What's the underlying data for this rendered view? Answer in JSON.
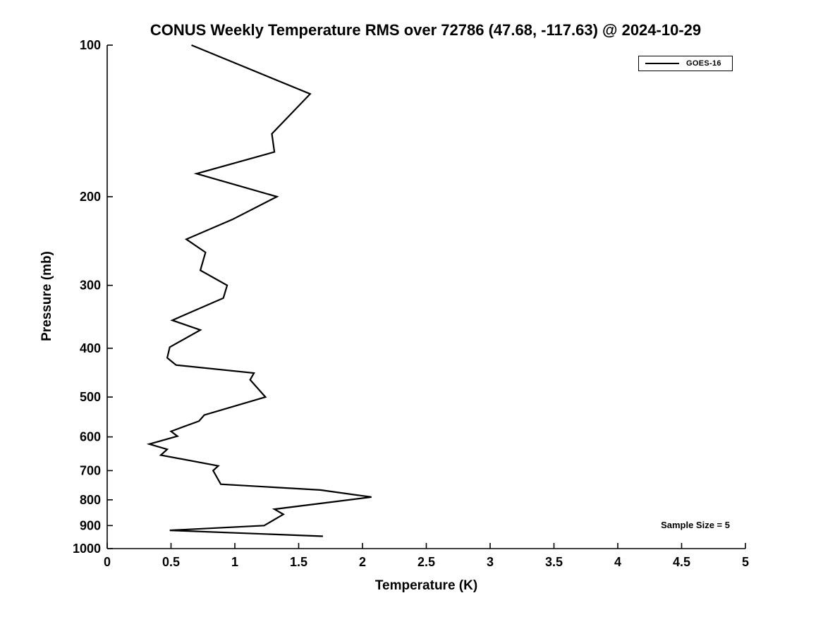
{
  "chart_data": {
    "type": "line",
    "title": "CONUS Weekly Temperature RMS over 72786 (47.68, -117.63) @ 2024-10-29",
    "xlabel": "Temperature (K)",
    "ylabel": "Pressure (mb)",
    "xlim": [
      0,
      5
    ],
    "ylim": [
      100,
      1000
    ],
    "y_scale": "log10",
    "y_inverted": true,
    "grid": false,
    "x_ticks": [
      0,
      0.5,
      1,
      1.5,
      2,
      2.5,
      3,
      3.5,
      4,
      4.5,
      5
    ],
    "y_ticks": [
      100,
      200,
      300,
      400,
      500,
      600,
      700,
      800,
      900,
      1000
    ],
    "axis_color": "#000000",
    "legend": {
      "position": "top-right",
      "entries": [
        {
          "label": "GOES-16",
          "color": "#000000",
          "line_style": "solid"
        }
      ]
    },
    "annotations": [
      {
        "text": "Sample Size = 5",
        "position": "bottom-right"
      }
    ],
    "series": [
      {
        "name": "GOES-16",
        "color": "#000000",
        "line_width": 2.2,
        "pressure_mb": [
          100,
          125,
          150,
          163,
          180,
          200,
          222,
          243,
          258,
          280,
          300,
          318,
          352,
          368,
          398,
          418,
          432,
          448,
          462,
          500,
          543,
          558,
          585,
          598,
          620,
          635,
          652,
          685,
          700,
          745,
          765,
          790,
          835,
          855,
          900,
          920,
          945
        ],
        "temperature_k": [
          0.66,
          1.59,
          1.29,
          1.31,
          0.7,
          1.33,
          0.98,
          0.62,
          0.77,
          0.73,
          0.94,
          0.91,
          0.51,
          0.73,
          0.49,
          0.47,
          0.54,
          1.15,
          1.12,
          1.24,
          0.76,
          0.72,
          0.5,
          0.55,
          0.33,
          0.47,
          0.42,
          0.87,
          0.83,
          0.89,
          1.67,
          2.07,
          1.31,
          1.38,
          1.23,
          0.49,
          1.69
        ]
      }
    ]
  }
}
